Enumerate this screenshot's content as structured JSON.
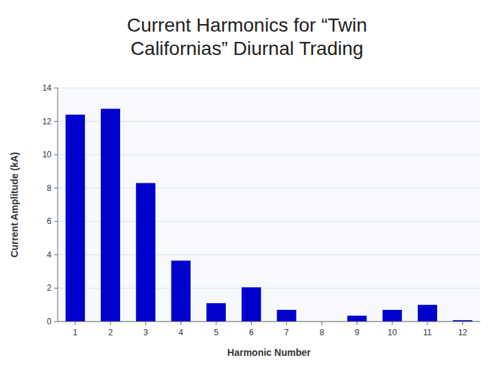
{
  "chart_data": {
    "type": "bar",
    "title": "Current Harmonics for “Twin\nCalifornias” Diurnal Trading",
    "xlabel": "Harmonic Number",
    "ylabel": "Current Amplitude (kA)",
    "categories": [
      "1",
      "2",
      "3",
      "4",
      "5",
      "6",
      "7",
      "8",
      "9",
      "10",
      "11",
      "12"
    ],
    "values": [
      12.4,
      12.75,
      8.3,
      3.65,
      1.1,
      2.05,
      0.7,
      0.0,
      0.35,
      0.7,
      1.0,
      0.08
    ],
    "color": "#0000CC",
    "ylim": [
      0,
      14
    ],
    "yticks": [
      0,
      2,
      4,
      6,
      8,
      10,
      12,
      14
    ],
    "grid": true
  }
}
